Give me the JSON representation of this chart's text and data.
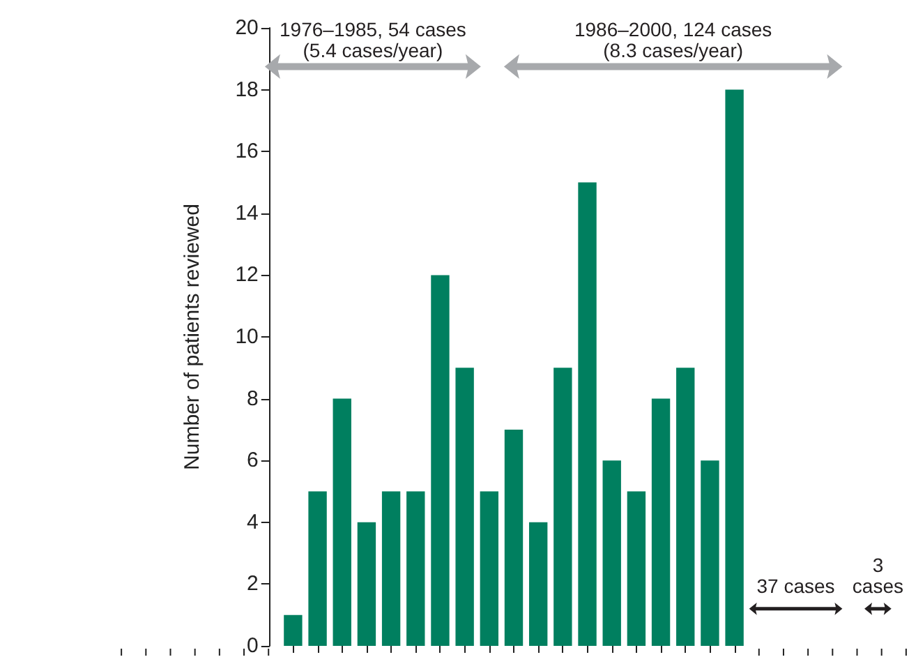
{
  "chart_data": {
    "type": "bar",
    "ylabel": "Number of patients reviewed",
    "categories": [
      null,
      null,
      null,
      null,
      null,
      null,
      null,
      null,
      null,
      null,
      null,
      null,
      null,
      null,
      null,
      null,
      null,
      null,
      null
    ],
    "values": [
      1,
      5,
      8,
      4,
      5,
      5,
      12,
      9,
      5,
      7,
      4,
      9,
      15,
      6,
      5,
      8,
      9,
      6,
      18
    ],
    "color": "#007f5f",
    "ylim": [
      0,
      20
    ],
    "yticks": [
      0,
      2,
      4,
      6,
      8,
      10,
      12,
      14,
      16,
      18,
      20
    ],
    "grid": false,
    "annotations": [
      "1976–1985, 54 cases\n(5.4 cases/year)",
      "1986–2000, 124 cases\n(8.3 cases/year)",
      "37 cases",
      "3\ncases"
    ]
  }
}
